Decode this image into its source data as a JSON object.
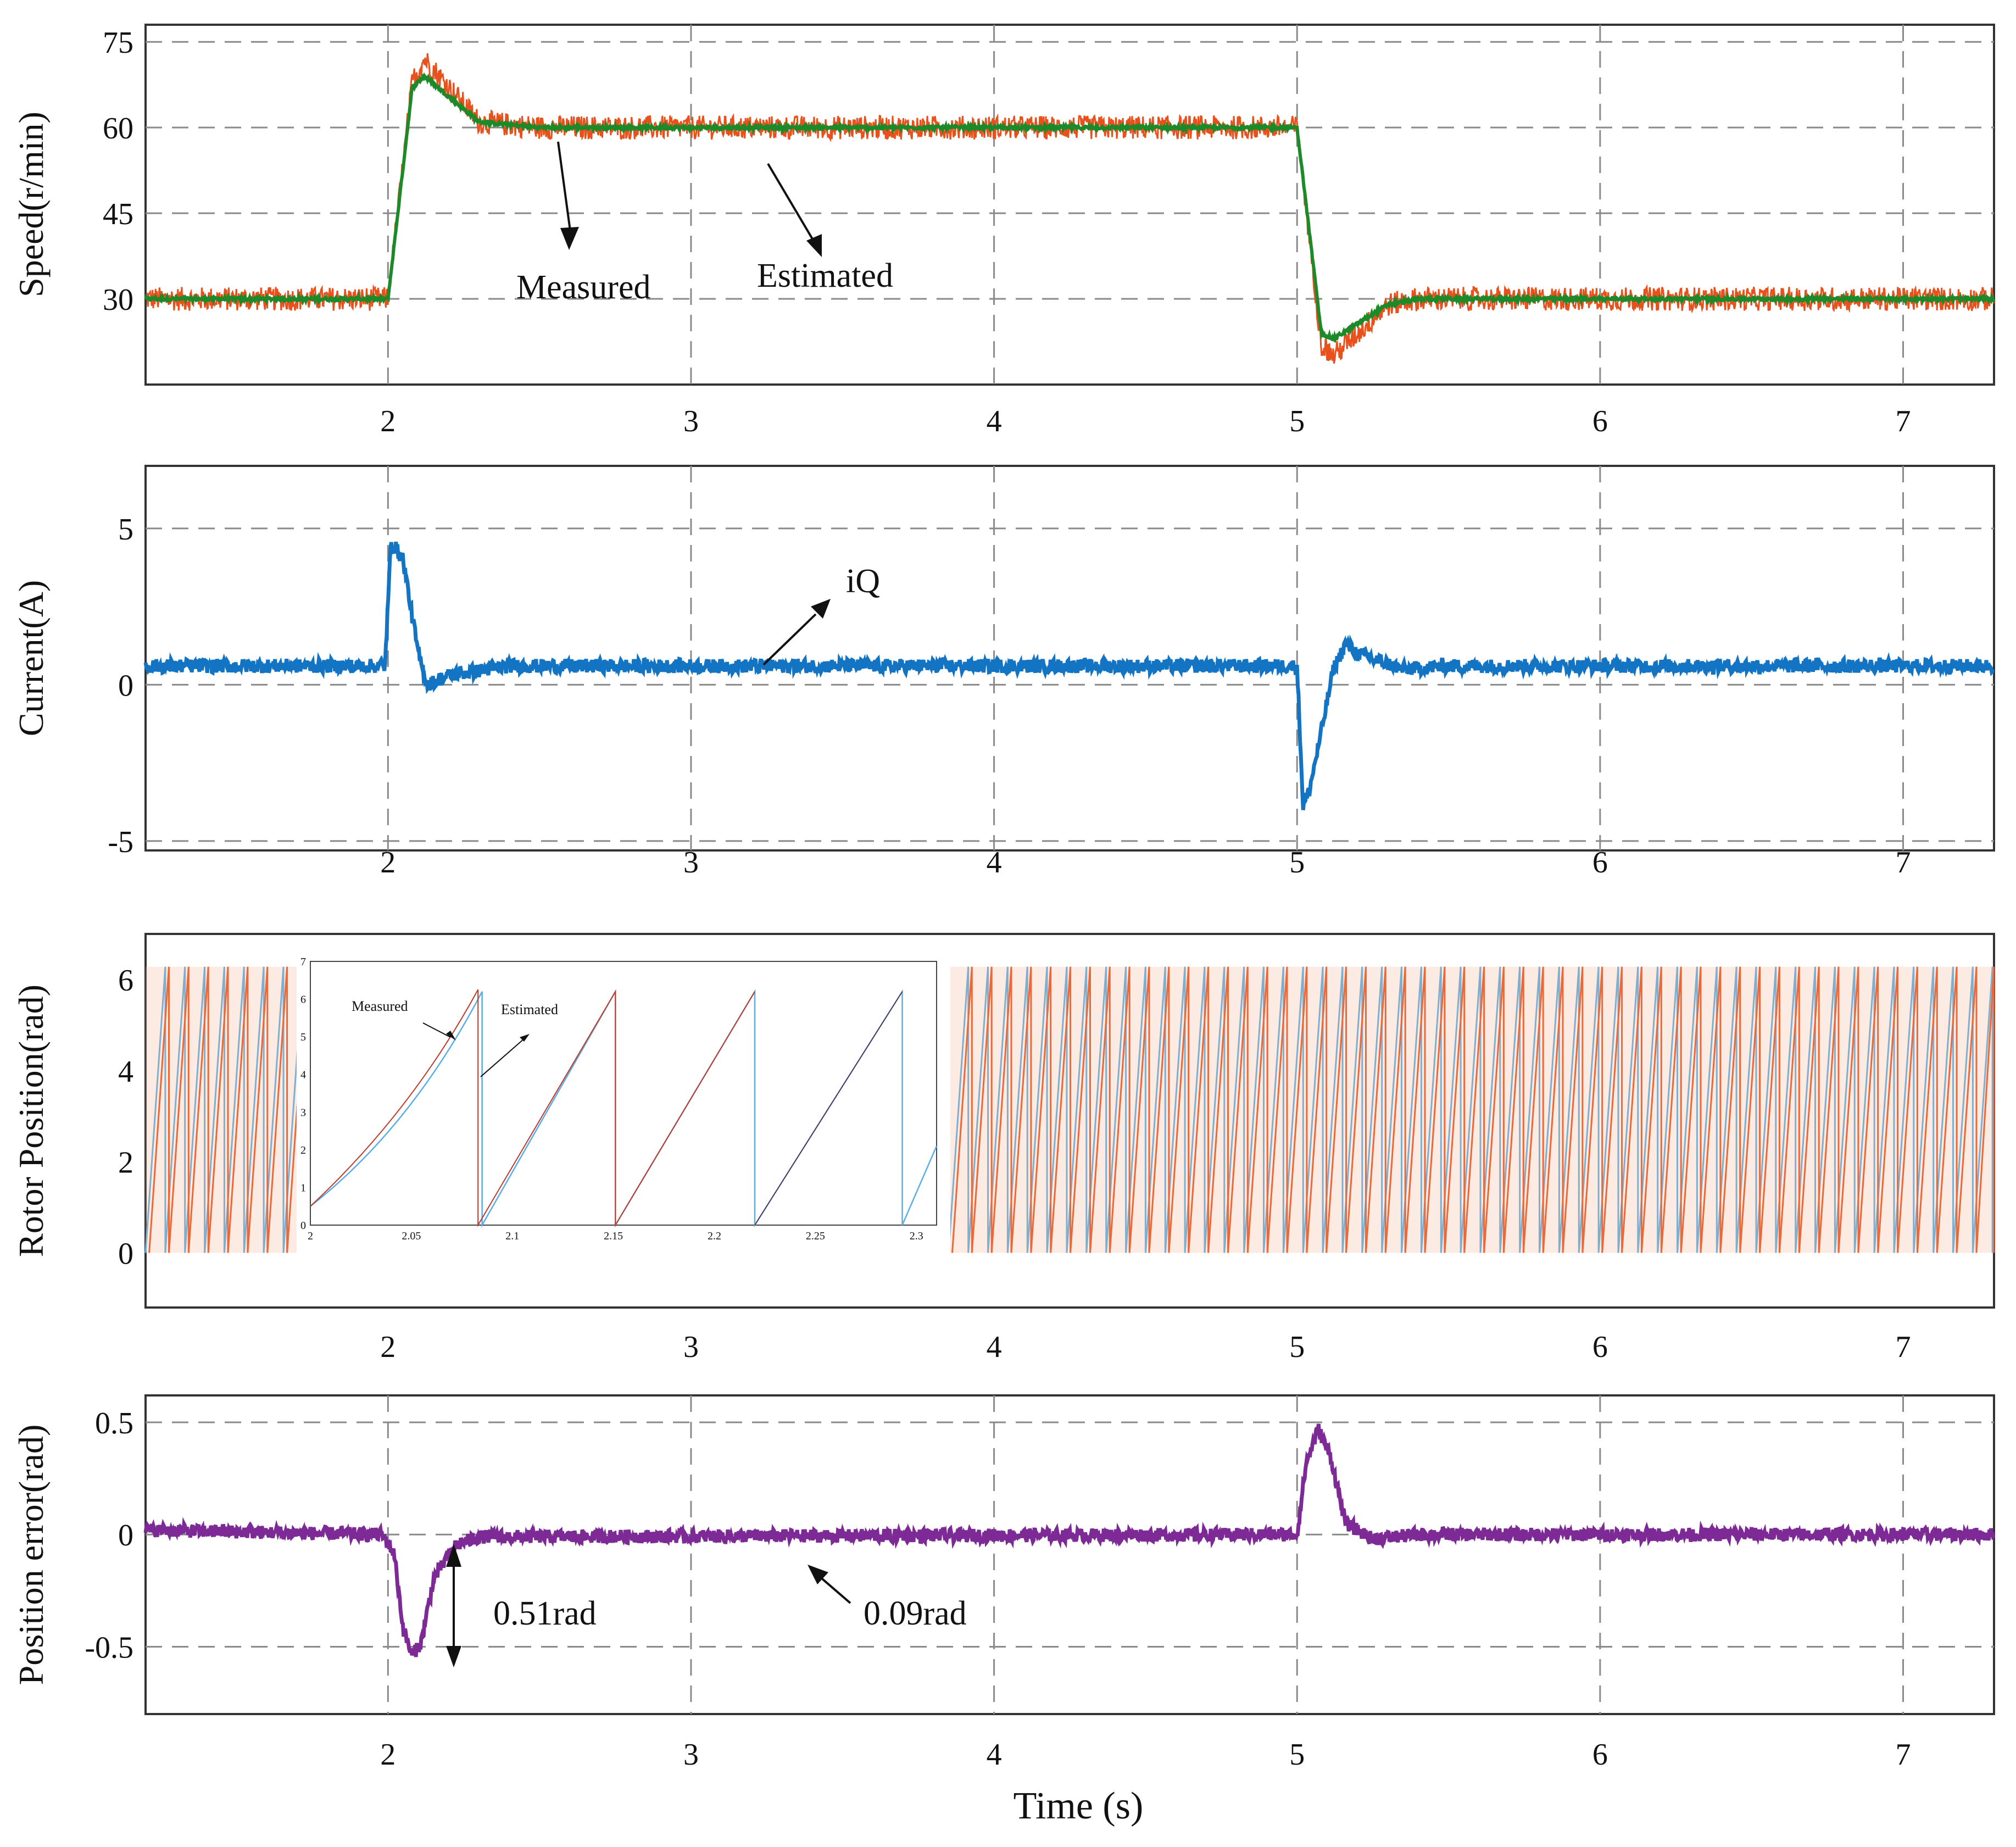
{
  "colors": {
    "measured_speed": "#e8501c",
    "estimated_speed": "#1d8a2a",
    "current": "#1474c4",
    "rotor_measured": "#e8501c",
    "rotor_estimated": "#5aaee6",
    "position_error": "#7d2a96",
    "grid": "#8a8a8a",
    "axis": "#333333"
  },
  "x_axis": {
    "label": "Time (s)",
    "range": [
      1.2,
      7.3
    ],
    "ticks": [
      2,
      3,
      4,
      5,
      6,
      7
    ]
  },
  "chart_data": [
    {
      "type": "line",
      "ylabel": "Speed(r/min)",
      "ylim": [
        15,
        78
      ],
      "yticks": [
        30,
        45,
        60,
        75
      ],
      "grid": true,
      "series": [
        {
          "name": "Measured",
          "key": "speed_measured",
          "segments": [
            [
              1.2,
              30
            ],
            [
              2.0,
              30
            ],
            [
              2.08,
              68
            ],
            [
              2.12,
              72
            ],
            [
              2.3,
              61
            ],
            [
              2.5,
              60
            ],
            [
              5.0,
              60
            ],
            [
              5.08,
              22
            ],
            [
              5.12,
              20
            ],
            [
              5.3,
              29
            ],
            [
              5.4,
              30
            ],
            [
              7.3,
              30
            ]
          ]
        },
        {
          "name": "Estimated",
          "key": "speed_estimated",
          "segments": [
            [
              1.2,
              30
            ],
            [
              2.0,
              30
            ],
            [
              2.08,
              67
            ],
            [
              2.12,
              69
            ],
            [
              2.3,
              61
            ],
            [
              2.5,
              60
            ],
            [
              5.0,
              60
            ],
            [
              5.08,
              24
            ],
            [
              5.12,
              23
            ],
            [
              5.3,
              29
            ],
            [
              5.4,
              30
            ],
            [
              7.3,
              30
            ]
          ]
        }
      ],
      "annotations": [
        {
          "text": "Measured",
          "x": 2.7,
          "y": 33
        },
        {
          "text": "Estimated",
          "x": 3.47,
          "y": 35
        }
      ]
    },
    {
      "type": "line",
      "ylabel": "Current(A)",
      "ylim": [
        -5.3,
        7
      ],
      "yticks": [
        5,
        0,
        -5
      ],
      "grid": true,
      "series": [
        {
          "name": "iQ",
          "key": "current_iq",
          "segments": [
            [
              1.2,
              0.6
            ],
            [
              1.99,
              0.6
            ],
            [
              2.01,
              4.6
            ],
            [
              2.05,
              4.0
            ],
            [
              2.1,
              1.0
            ],
            [
              2.13,
              0.0
            ],
            [
              2.2,
              0.3
            ],
            [
              2.4,
              0.6
            ],
            [
              5.0,
              0.6
            ],
            [
              5.02,
              -3.9
            ],
            [
              5.04,
              -3.4
            ],
            [
              5.08,
              -1.5
            ],
            [
              5.12,
              0.5
            ],
            [
              5.16,
              1.3
            ],
            [
              5.2,
              1.0
            ],
            [
              5.35,
              0.5
            ],
            [
              5.5,
              0.6
            ],
            [
              7.3,
              0.6
            ]
          ]
        }
      ],
      "annotations": [
        {
          "text": "iQ",
          "x": 3.65,
          "y": 3.4
        }
      ]
    },
    {
      "type": "line",
      "ylabel": "Rotor Position(rad)",
      "ylim": [
        -1.2,
        7
      ],
      "yticks": [
        0,
        2,
        4,
        6
      ],
      "grid": false,
      "series": [
        {
          "name": "Measured",
          "key": "rotor_measured",
          "range": [
            0,
            6.28
          ]
        },
        {
          "name": "Estimated",
          "key": "rotor_estimated",
          "range": [
            0,
            6.28
          ]
        }
      ],
      "inset": {
        "xlim": [
          2.0,
          2.31
        ],
        "ylim": [
          0,
          7
        ],
        "xticks": [
          "2",
          "2.05",
          "2.1",
          "2.15",
          "2.2",
          "2.25",
          "2.3"
        ],
        "yticks": [
          "0",
          "1",
          "2",
          "3",
          "4",
          "5",
          "6",
          "7"
        ],
        "annotations": [
          {
            "text": "Measured",
            "x": 2.02,
            "y": 6.0
          },
          {
            "text": "Estimated",
            "x": 2.095,
            "y": 5.9
          }
        ],
        "estimated_resets": [
          2.085,
          2.151,
          2.22,
          2.293
        ],
        "measured_resets": [
          2.083,
          2.151
        ]
      }
    },
    {
      "type": "line",
      "ylabel": "Position error(rad)",
      "ylim": [
        -0.8,
        0.62
      ],
      "yticks": [
        0.5,
        0,
        -0.5
      ],
      "grid": true,
      "series": [
        {
          "name": "Position error",
          "key": "position_error",
          "segments": [
            [
              1.2,
              0.02
            ],
            [
              1.98,
              0.0
            ],
            [
              2.02,
              -0.08
            ],
            [
              2.05,
              -0.42
            ],
            [
              2.08,
              -0.54
            ],
            [
              2.11,
              -0.48
            ],
            [
              2.15,
              -0.2
            ],
            [
              2.22,
              -0.05
            ],
            [
              2.3,
              -0.01
            ],
            [
              5.0,
              0.0
            ],
            [
              5.03,
              0.32
            ],
            [
              5.07,
              0.47
            ],
            [
              5.11,
              0.35
            ],
            [
              5.16,
              0.05
            ],
            [
              5.25,
              -0.02
            ],
            [
              5.4,
              0.0
            ],
            [
              7.3,
              0.0
            ]
          ]
        }
      ],
      "annotations": [
        {
          "text": "0.51rad",
          "x": 2.38,
          "y": -0.39
        },
        {
          "text": "0.09rad",
          "x": 3.58,
          "y": -0.39
        }
      ]
    }
  ]
}
